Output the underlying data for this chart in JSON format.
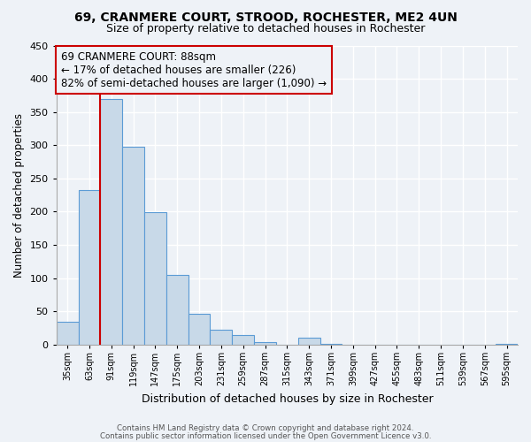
{
  "title": "69, CRANMERE COURT, STROOD, ROCHESTER, ME2 4UN",
  "subtitle": "Size of property relative to detached houses in Rochester",
  "xlabel": "Distribution of detached houses by size in Rochester",
  "ylabel": "Number of detached properties",
  "bar_labels": [
    "35sqm",
    "63sqm",
    "91sqm",
    "119sqm",
    "147sqm",
    "175sqm",
    "203sqm",
    "231sqm",
    "259sqm",
    "287sqm",
    "315sqm",
    "343sqm",
    "371sqm",
    "399sqm",
    "427sqm",
    "455sqm",
    "483sqm",
    "511sqm",
    "539sqm",
    "567sqm",
    "595sqm"
  ],
  "bar_values": [
    35,
    233,
    370,
    298,
    199,
    105,
    47,
    23,
    15,
    4,
    0,
    10,
    1,
    0,
    0,
    0,
    0,
    0,
    0,
    0,
    1
  ],
  "bar_color": "#c8d9e8",
  "bar_edge_color": "#5b9bd5",
  "property_line_color": "#cc0000",
  "annotation_line1": "69 CRANMERE COURT: 88sqm",
  "annotation_line2": "← 17% of detached houses are smaller (226)",
  "annotation_line3": "82% of semi-detached houses are larger (1,090) →",
  "annotation_box_color": "#cc0000",
  "ylim": [
    0,
    450
  ],
  "yticks": [
    0,
    50,
    100,
    150,
    200,
    250,
    300,
    350,
    400,
    450
  ],
  "footer_line1": "Contains HM Land Registry data © Crown copyright and database right 2024.",
  "footer_line2": "Contains public sector information licensed under the Open Government Licence v3.0.",
  "bg_color": "#eef2f7",
  "grid_color": "#ffffff",
  "property_bar_index": 2,
  "title_fontsize": 10,
  "subtitle_fontsize": 9
}
